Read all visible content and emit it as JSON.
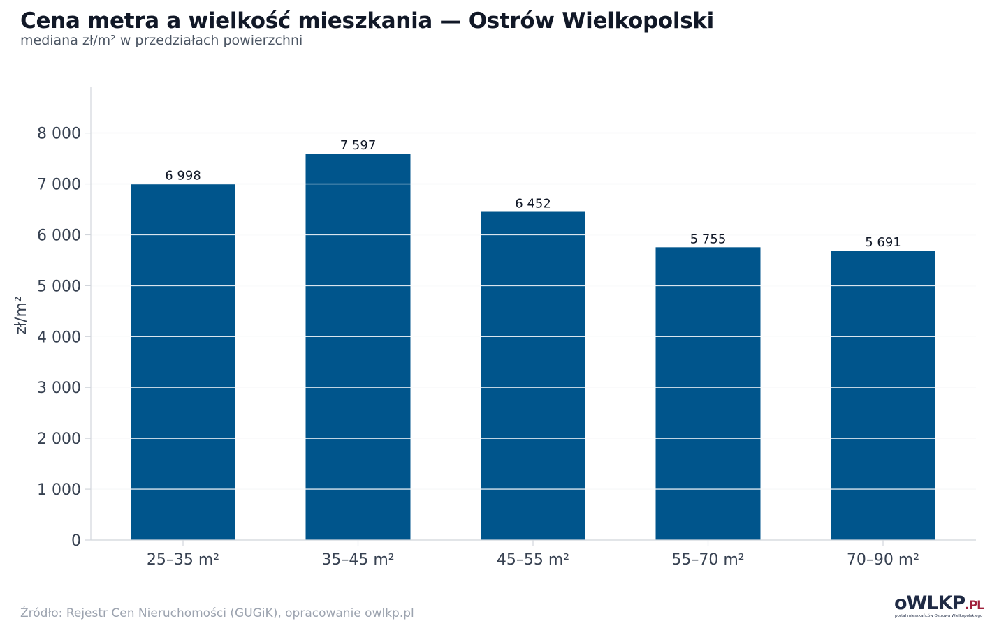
{
  "header": {
    "title": "Cena metra a wielkość mieszkania — Ostrów Wielkopolski",
    "subtitle": "mediana zł/m² w przedziałach powierzchni"
  },
  "footer": {
    "source": "Źródło: Rejestr Cen Nieruchomości (GUGiK), opracowanie owlkp.pl"
  },
  "logo": {
    "main": "oWLKP",
    "suffix": ".PL",
    "tagline": "portal mieszkańców Ostrowa Wielkopolskiego"
  },
  "colors": {
    "bar": "#00558c",
    "grid": "#e5e7eb",
    "axis": "#d1d5db",
    "text": "#374151"
  },
  "chart_data": {
    "type": "bar",
    "categories": [
      "25–35 m²",
      "35–45 m²",
      "45–55 m²",
      "55–70 m²",
      "70–90 m²"
    ],
    "values": [
      6998,
      7597,
      6452,
      5755,
      5691
    ],
    "value_labels": [
      "6 998",
      "7 597",
      "6 452",
      "5 755",
      "5 691"
    ],
    "title": "Cena metra a wielkość mieszkania — Ostrów Wielkopolski",
    "subtitle": "mediana zł/m² w przedziałach powierzchni",
    "xlabel": "",
    "ylabel": "zł/m²",
    "ylim": [
      0,
      8900
    ],
    "yticks": [
      0,
      1000,
      2000,
      3000,
      4000,
      5000,
      6000,
      7000,
      8000
    ],
    "ytick_labels": [
      "0",
      "1 000",
      "2 000",
      "3 000",
      "4 000",
      "5 000",
      "6 000",
      "7 000",
      "8 000"
    ],
    "grid": true,
    "legend": "none"
  }
}
